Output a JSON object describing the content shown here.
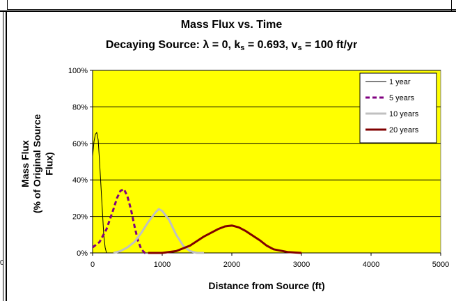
{
  "chart_data": {
    "type": "line",
    "title": "Mass Flux vs. Time",
    "subtitle": {
      "prefix": "Decaying Source: λ = 0, k",
      "ks_sub": "s",
      "mid": " = 0.693, v",
      "vs_sub": "s",
      "suffix": " = 100 ft/yr"
    },
    "xlabel": "Distance from Source (ft)",
    "ylabel_line1": "Mass Flux",
    "ylabel_line2": "(% of Original Source",
    "ylabel_line3": "Flux)",
    "xlim": [
      0,
      5000
    ],
    "ylim": [
      0,
      100
    ],
    "x_ticks": [
      0,
      1000,
      2000,
      3000,
      4000,
      5000
    ],
    "x_tick_labels": [
      "0",
      "1000",
      "2000",
      "3000",
      "4000",
      "5000"
    ],
    "y_ticks": [
      0,
      20,
      40,
      60,
      80,
      100
    ],
    "y_tick_labels": [
      "0%",
      "20%",
      "40%",
      "60%",
      "80%",
      "100%"
    ],
    "grid": "horizontal",
    "plot_background": "#ffff00",
    "legend_position": "top-right",
    "series": [
      {
        "name": "1 year",
        "color": "#000000",
        "style": "solid",
        "width": 1,
        "points": [
          [
            0,
            53
          ],
          [
            20,
            61
          ],
          [
            40,
            65
          ],
          [
            60,
            66
          ],
          [
            80,
            62
          ],
          [
            100,
            50
          ],
          [
            130,
            30
          ],
          [
            160,
            10
          ],
          [
            180,
            3
          ],
          [
            200,
            0
          ]
        ]
      },
      {
        "name": "5 years",
        "color": "#800080",
        "style": "dashed",
        "width": 3,
        "points": [
          [
            0,
            3
          ],
          [
            100,
            6
          ],
          [
            200,
            13
          ],
          [
            300,
            24
          ],
          [
            350,
            30
          ],
          [
            400,
            34
          ],
          [
            450,
            35
          ],
          [
            500,
            31
          ],
          [
            550,
            24
          ],
          [
            600,
            15
          ],
          [
            650,
            7
          ],
          [
            700,
            2
          ],
          [
            750,
            0
          ],
          [
            800,
            0
          ]
        ]
      },
      {
        "name": "10 years",
        "color": "#c0c0c0",
        "style": "solid",
        "width": 3,
        "points": [
          [
            300,
            0
          ],
          [
            400,
            1
          ],
          [
            500,
            3
          ],
          [
            600,
            6
          ],
          [
            700,
            11
          ],
          [
            800,
            17
          ],
          [
            900,
            22
          ],
          [
            950,
            24
          ],
          [
            1000,
            23
          ],
          [
            1100,
            18
          ],
          [
            1200,
            10
          ],
          [
            1300,
            4
          ],
          [
            1400,
            1
          ],
          [
            1500,
            0
          ],
          [
            1600,
            0
          ]
        ]
      },
      {
        "name": "20 years",
        "color": "#800000",
        "style": "solid",
        "width": 3,
        "points": [
          [
            800,
            0
          ],
          [
            1000,
            0
          ],
          [
            1200,
            1
          ],
          [
            1400,
            4
          ],
          [
            1600,
            9
          ],
          [
            1800,
            13
          ],
          [
            1900,
            14.5
          ],
          [
            2000,
            15
          ],
          [
            2100,
            14
          ],
          [
            2200,
            12
          ],
          [
            2400,
            7
          ],
          [
            2500,
            4
          ],
          [
            2600,
            2
          ],
          [
            2800,
            0.5
          ],
          [
            3000,
            0
          ]
        ]
      }
    ]
  },
  "stray_label": "0"
}
